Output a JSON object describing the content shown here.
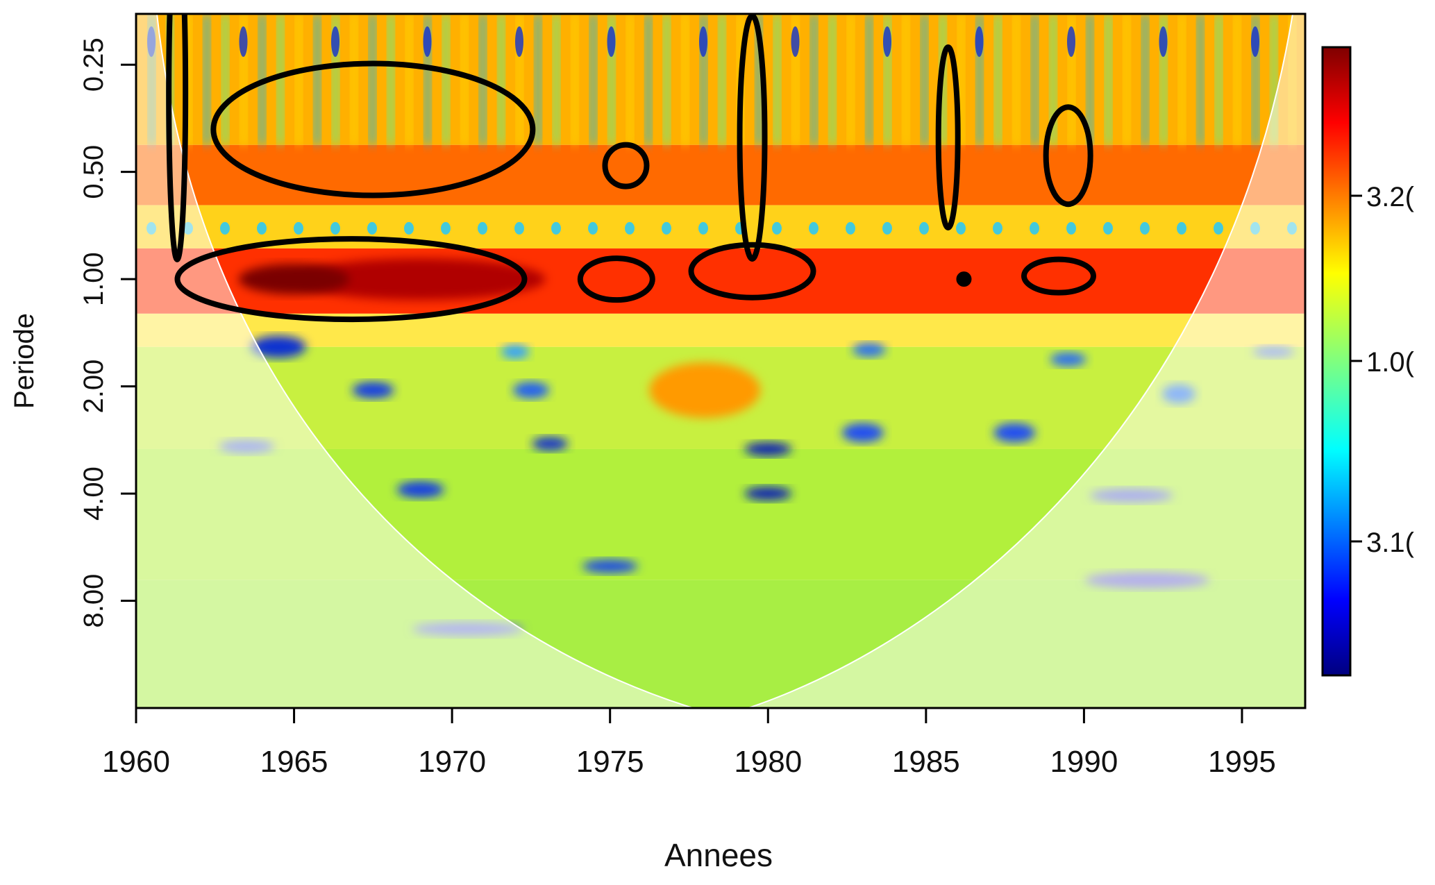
{
  "chart_data": {
    "type": "heatmap",
    "title": "",
    "xlabel": "Annees",
    "ylabel": "Periode",
    "x_range": [
      1960,
      1997
    ],
    "x_ticks": [
      1960,
      1965,
      1970,
      1975,
      1980,
      1985,
      1990,
      1995
    ],
    "x_tick_labels": [
      "1960",
      "1965",
      "1970",
      "1975",
      "1980",
      "1985",
      "1990",
      "1995"
    ],
    "y_scale": "log2",
    "y_axis_direction": "period increases downward",
    "y_range": [
      0.18,
      16
    ],
    "y_ticks": [
      0.25,
      0.5,
      1,
      2,
      4,
      8
    ],
    "y_tick_labels": [
      "0.25",
      "0.50",
      "1.00",
      "2.00",
      "4.00",
      "8.00"
    ],
    "colorbar": {
      "colormap": "jet",
      "tick_labels": [
        "3.2(",
        "1.0(",
        "3.1("
      ]
    },
    "cone_of_influence": {
      "bottom_year": 1978.5,
      "edge": "white curve"
    },
    "significant_regions": [
      {
        "x_center": 1961.3,
        "period_center": 0.3
      },
      {
        "x_center": 1967.5,
        "period_center": 0.38
      },
      {
        "x_center": 1966.8,
        "period_center": 1.0
      },
      {
        "x_center": 1975.2,
        "period_center": 1.0
      },
      {
        "x_center": 1975.5,
        "period_center": 0.48
      },
      {
        "x_center": 1979.5,
        "period_center": 0.95
      },
      {
        "x_center": 1979.5,
        "period_center": 0.4
      },
      {
        "x_center": 1985.7,
        "period_center": 0.4
      },
      {
        "x_center": 1986.2,
        "period_center": 1.0
      },
      {
        "x_center": 1989.2,
        "period_center": 0.98
      },
      {
        "x_center": 1989.5,
        "period_center": 0.45
      }
    ]
  }
}
